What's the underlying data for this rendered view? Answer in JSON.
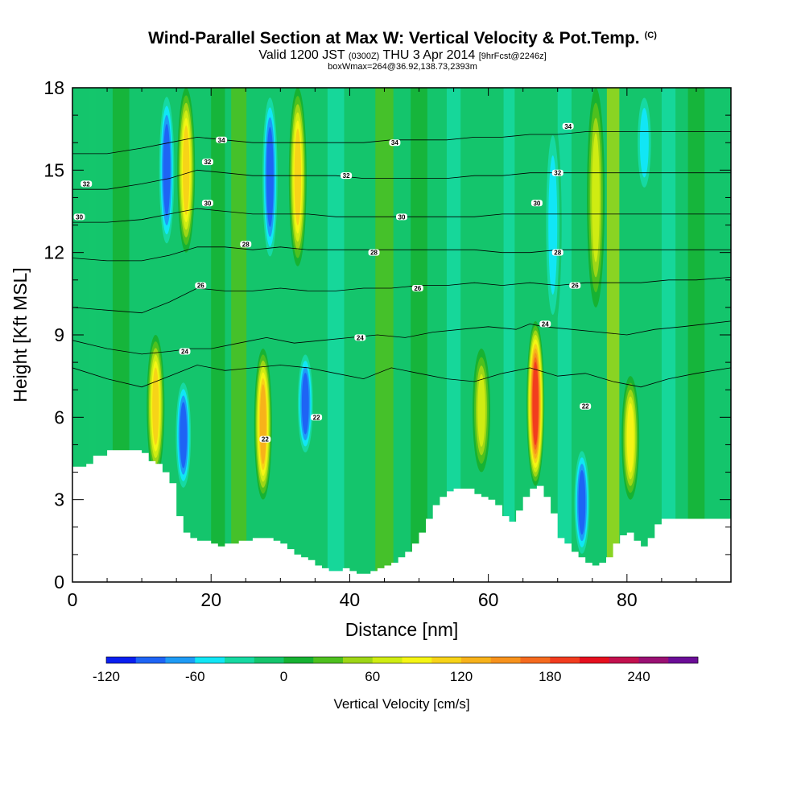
{
  "header": {
    "title": "Wind-Parallel Section at Max W: Vertical Velocity & Pot.Temp.",
    "title_mark": "(C)",
    "valid_prefix": "Valid 1200 JST",
    "valid_zulu": "(0300Z)",
    "valid_date": "THU 3 Apr 2014",
    "forecast": "[9hrFcst@2246z]",
    "box_info": "boxWmax=264@36.92,138.73,2393m"
  },
  "chart_data": {
    "type": "heatmap",
    "title": "Wind-Parallel Section at Max W: Vertical Velocity & Pot.Temp.",
    "xlabel": "Distance [nm]",
    "ylabel": "Height [Kft MSL]",
    "xlim": [
      0,
      95
    ],
    "ylim": [
      0,
      18
    ],
    "x_ticks": [
      0,
      20,
      40,
      60,
      80
    ],
    "y_ticks": [
      0,
      3,
      6,
      9,
      12,
      15,
      18
    ],
    "colorbar": {
      "label": "Vertical Velocity [cm/s]",
      "min": -120,
      "max": 280,
      "step": 20,
      "tick_values": [
        -120,
        -60,
        0,
        60,
        120,
        180,
        240
      ],
      "tick_labels": [
        "-120",
        "-60",
        "0",
        "60",
        "120",
        "180",
        "240"
      ],
      "colors": [
        "#0a1ff0",
        "#1e64f5",
        "#1e9bf5",
        "#11e6f5",
        "#16d9a2",
        "#14c56c",
        "#16b232",
        "#4ec01e",
        "#9ed616",
        "#cfec12",
        "#f5f514",
        "#f7d318",
        "#f7b21a",
        "#f7921c",
        "#f56a1e",
        "#f23c1e",
        "#e60f1e",
        "#c3104e",
        "#9a1073",
        "#6b0d97"
      ]
    },
    "terrain": {
      "x": [
        0,
        1,
        2,
        3,
        5,
        6,
        7,
        8,
        9,
        10,
        11,
        12,
        13,
        14,
        15,
        16,
        17,
        18,
        19,
        20,
        21,
        22,
        23,
        24,
        25,
        26,
        27,
        28,
        29,
        30,
        31,
        32,
        33,
        34,
        35,
        36,
        37,
        38,
        39,
        40,
        41,
        42,
        43,
        44,
        45,
        46,
        47,
        48,
        49,
        50,
        51,
        52,
        53,
        54,
        55,
        56,
        57,
        58,
        59,
        60,
        61,
        62,
        63,
        64,
        65,
        66,
        67,
        68,
        69,
        70,
        71,
        72,
        73,
        74,
        75,
        76,
        77,
        78,
        79,
        80,
        81,
        82,
        83,
        84,
        85,
        86,
        87,
        88,
        89,
        90,
        91,
        92,
        93,
        94,
        95
      ],
      "h": [
        4.2,
        4.2,
        4.3,
        4.6,
        4.8,
        4.8,
        4.8,
        4.8,
        4.8,
        4.7,
        4.4,
        4.3,
        4.0,
        3.6,
        2.4,
        1.8,
        1.6,
        1.5,
        1.5,
        1.4,
        1.3,
        1.4,
        1.4,
        1.5,
        1.5,
        1.6,
        1.6,
        1.6,
        1.5,
        1.4,
        1.2,
        1.0,
        0.9,
        0.8,
        0.6,
        0.5,
        0.4,
        0.4,
        0.5,
        0.4,
        0.3,
        0.3,
        0.4,
        0.5,
        0.6,
        0.7,
        0.9,
        1.1,
        1.4,
        1.8,
        2.3,
        2.8,
        3.1,
        3.3,
        3.4,
        3.4,
        3.4,
        3.2,
        3.1,
        3.0,
        2.8,
        2.4,
        2.2,
        2.6,
        3.1,
        3.4,
        3.5,
        3.1,
        2.5,
        1.6,
        1.4,
        1.1,
        0.9,
        0.7,
        0.6,
        0.7,
        0.9,
        1.4,
        1.7,
        1.8,
        1.5,
        1.3,
        1.6,
        2.1,
        2.3,
        2.3,
        2.3,
        2.3,
        2.3,
        2.3,
        2.3,
        2.3,
        2.3,
        2.3,
        2.3
      ]
    },
    "vertical_velocity_features": [
      {
        "x": 13.6,
        "y_min": 12,
        "y_max": 18,
        "value": -100
      },
      {
        "x": 16.4,
        "y_min": 12,
        "y_max": 18,
        "value": 130
      },
      {
        "x": 12.0,
        "y_min": 3.8,
        "y_max": 9,
        "value": 120
      },
      {
        "x": 16.0,
        "y_min": 3.2,
        "y_max": 7.5,
        "value": -100
      },
      {
        "x": 27.5,
        "y_min": 3,
        "y_max": 8.5,
        "value": 140
      },
      {
        "x": 28.5,
        "y_min": 11.5,
        "y_max": 18,
        "value": -100
      },
      {
        "x": 32.5,
        "y_min": 11.5,
        "y_max": 18,
        "value": 130
      },
      {
        "x": 33.6,
        "y_min": 4.5,
        "y_max": 8.5,
        "value": -100
      },
      {
        "x": 59,
        "y_min": 4,
        "y_max": 8.5,
        "value": 80
      },
      {
        "x": 66.8,
        "y_min": 3.5,
        "y_max": 9.5,
        "value": 200
      },
      {
        "x": 69.3,
        "y_min": 9,
        "y_max": 17,
        "value": -60
      },
      {
        "x": 73.5,
        "y_min": 0.8,
        "y_max": 5,
        "value": -110
      },
      {
        "x": 75.5,
        "y_min": 10,
        "y_max": 18,
        "value": 80
      },
      {
        "x": 80.5,
        "y_min": 3,
        "y_max": 7.5,
        "value": 100
      },
      {
        "x": 82.5,
        "y_min": 14,
        "y_max": 18,
        "value": -60
      }
    ],
    "theta_contours": [
      {
        "value": 22,
        "label": "22",
        "points": [
          [
            0,
            7.8
          ],
          [
            5,
            7.4
          ],
          [
            10,
            7.1
          ],
          [
            14,
            7.5
          ],
          [
            18,
            7.9
          ],
          [
            22,
            7.7
          ],
          [
            26,
            7.8
          ],
          [
            30,
            7.9
          ],
          [
            34,
            7.8
          ],
          [
            38,
            7.6
          ],
          [
            42,
            7.4
          ],
          [
            46,
            7.8
          ],
          [
            50,
            7.6
          ],
          [
            54,
            7.4
          ],
          [
            58,
            7.3
          ],
          [
            62,
            7.6
          ],
          [
            66,
            7.8
          ],
          [
            70,
            7.5
          ],
          [
            74,
            7.6
          ],
          [
            78,
            7.3
          ],
          [
            82,
            7.1
          ],
          [
            86,
            7.4
          ],
          [
            90,
            7.6
          ],
          [
            95,
            7.8
          ]
        ],
        "label_at": [
          [
            27.8,
            5.2
          ],
          [
            35.2,
            6.0
          ],
          [
            74.0,
            6.4
          ]
        ]
      },
      {
        "value": 24,
        "label": "24",
        "points": [
          [
            0,
            8.8
          ],
          [
            5,
            8.5
          ],
          [
            10,
            8.3
          ],
          [
            14,
            8.4
          ],
          [
            17,
            8.5
          ],
          [
            20,
            8.5
          ],
          [
            24,
            8.7
          ],
          [
            28,
            8.9
          ],
          [
            32,
            8.7
          ],
          [
            36,
            8.8
          ],
          [
            40,
            8.9
          ],
          [
            44,
            9.0
          ],
          [
            48,
            8.9
          ],
          [
            52,
            9.1
          ],
          [
            56,
            9.2
          ],
          [
            60,
            9.3
          ],
          [
            64,
            9.2
          ],
          [
            66,
            9.4
          ],
          [
            68,
            9.3
          ],
          [
            72,
            9.2
          ],
          [
            76,
            9.1
          ],
          [
            80,
            9.0
          ],
          [
            84,
            9.2
          ],
          [
            88,
            9.3
          ],
          [
            95,
            9.5
          ]
        ],
        "label_at": [
          [
            16.2,
            8.4
          ],
          [
            41.5,
            8.9
          ],
          [
            68.2,
            9.4
          ]
        ]
      },
      {
        "value": 26,
        "label": "26",
        "points": [
          [
            0,
            10.0
          ],
          [
            5,
            9.9
          ],
          [
            10,
            9.8
          ],
          [
            14,
            10.2
          ],
          [
            18,
            10.7
          ],
          [
            22,
            10.6
          ],
          [
            26,
            10.6
          ],
          [
            30,
            10.7
          ],
          [
            34,
            10.6
          ],
          [
            38,
            10.6
          ],
          [
            42,
            10.7
          ],
          [
            46,
            10.7
          ],
          [
            50,
            10.8
          ],
          [
            54,
            10.8
          ],
          [
            58,
            10.9
          ],
          [
            62,
            10.8
          ],
          [
            66,
            10.9
          ],
          [
            70,
            10.8
          ],
          [
            74,
            10.9
          ],
          [
            78,
            10.9
          ],
          [
            82,
            10.9
          ],
          [
            86,
            11.0
          ],
          [
            90,
            11.0
          ],
          [
            95,
            11.1
          ]
        ],
        "label_at": [
          [
            18.5,
            10.8
          ],
          [
            49.8,
            10.7
          ],
          [
            72.5,
            10.8
          ]
        ]
      },
      {
        "value": 28,
        "label": "28",
        "points": [
          [
            0,
            11.8
          ],
          [
            5,
            11.7
          ],
          [
            10,
            11.7
          ],
          [
            14,
            11.9
          ],
          [
            18,
            12.2
          ],
          [
            22,
            12.2
          ],
          [
            26,
            12.1
          ],
          [
            30,
            12.2
          ],
          [
            34,
            12.1
          ],
          [
            38,
            12.1
          ],
          [
            42,
            12.1
          ],
          [
            46,
            12.1
          ],
          [
            50,
            12.1
          ],
          [
            54,
            12.1
          ],
          [
            58,
            12.1
          ],
          [
            62,
            12.0
          ],
          [
            66,
            12.0
          ],
          [
            70,
            12.1
          ],
          [
            74,
            12.1
          ],
          [
            78,
            12.1
          ],
          [
            82,
            12.1
          ],
          [
            86,
            12.1
          ],
          [
            90,
            12.1
          ],
          [
            95,
            12.1
          ]
        ],
        "label_at": [
          [
            25.0,
            12.3
          ],
          [
            43.5,
            12.0
          ],
          [
            70.0,
            12.0
          ]
        ]
      },
      {
        "value": 30,
        "label": "30",
        "points": [
          [
            0,
            13.1
          ],
          [
            5,
            13.1
          ],
          [
            10,
            13.2
          ],
          [
            14,
            13.4
          ],
          [
            18,
            13.6
          ],
          [
            22,
            13.5
          ],
          [
            26,
            13.4
          ],
          [
            30,
            13.4
          ],
          [
            34,
            13.4
          ],
          [
            38,
            13.3
          ],
          [
            42,
            13.3
          ],
          [
            46,
            13.3
          ],
          [
            50,
            13.3
          ],
          [
            54,
            13.3
          ],
          [
            58,
            13.3
          ],
          [
            62,
            13.4
          ],
          [
            66,
            13.4
          ],
          [
            70,
            13.4
          ],
          [
            74,
            13.4
          ],
          [
            78,
            13.4
          ],
          [
            82,
            13.4
          ],
          [
            86,
            13.4
          ],
          [
            90,
            13.4
          ],
          [
            95,
            13.4
          ]
        ],
        "label_at": [
          [
            1.0,
            13.3
          ],
          [
            19.5,
            13.8
          ],
          [
            47.5,
            13.3
          ],
          [
            67.0,
            13.8
          ]
        ]
      },
      {
        "value": 32,
        "label": "32",
        "points": [
          [
            0,
            14.3
          ],
          [
            5,
            14.3
          ],
          [
            10,
            14.5
          ],
          [
            14,
            14.7
          ],
          [
            18,
            15.0
          ],
          [
            22,
            14.9
          ],
          [
            26,
            14.8
          ],
          [
            30,
            14.8
          ],
          [
            34,
            14.8
          ],
          [
            38,
            14.8
          ],
          [
            42,
            14.7
          ],
          [
            46,
            14.7
          ],
          [
            50,
            14.7
          ],
          [
            54,
            14.7
          ],
          [
            58,
            14.8
          ],
          [
            62,
            14.8
          ],
          [
            66,
            14.9
          ],
          [
            70,
            14.9
          ],
          [
            74,
            14.9
          ],
          [
            78,
            14.9
          ],
          [
            82,
            14.9
          ],
          [
            86,
            14.9
          ],
          [
            90,
            14.9
          ],
          [
            95,
            14.9
          ]
        ],
        "label_at": [
          [
            2.0,
            14.5
          ],
          [
            19.5,
            15.3
          ],
          [
            39.5,
            14.8
          ],
          [
            70.0,
            14.9
          ]
        ]
      },
      {
        "value": 34,
        "label": "34",
        "points": [
          [
            0,
            15.6
          ],
          [
            5,
            15.6
          ],
          [
            10,
            15.8
          ],
          [
            14,
            16.0
          ],
          [
            18,
            16.2
          ],
          [
            22,
            16.1
          ],
          [
            26,
            16.0
          ],
          [
            30,
            16.0
          ],
          [
            34,
            16.0
          ],
          [
            38,
            16.0
          ],
          [
            42,
            16.0
          ],
          [
            46,
            16.1
          ],
          [
            50,
            16.1
          ],
          [
            54,
            16.1
          ],
          [
            58,
            16.2
          ],
          [
            62,
            16.2
          ],
          [
            66,
            16.3
          ],
          [
            70,
            16.3
          ],
          [
            74,
            16.4
          ],
          [
            78,
            16.4
          ],
          [
            82,
            16.4
          ],
          [
            86,
            16.4
          ],
          [
            90,
            16.4
          ],
          [
            95,
            16.4
          ]
        ],
        "label_at": [
          [
            21.5,
            16.1
          ],
          [
            46.5,
            16.0
          ],
          [
            71.5,
            16.6
          ]
        ]
      }
    ]
  }
}
